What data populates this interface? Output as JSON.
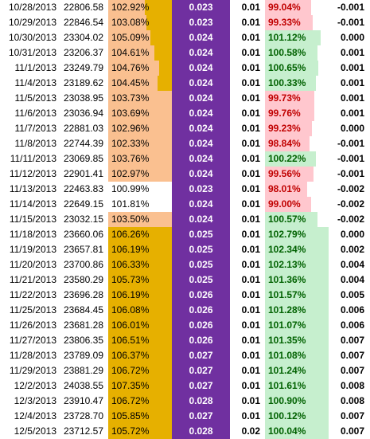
{
  "colors": {
    "orange_light": "#fac090",
    "orange_dark": "#e6b000",
    "purple": "#7030a0",
    "green_fill": "#c6efce",
    "green_text": "#006100",
    "red_fill": "#ffc7ce",
    "red_text": "#c00000"
  },
  "rows": [
    {
      "date": "10/28/2013",
      "value": "22806.58",
      "pct1": "102.92%",
      "pct1_fill": 0.58,
      "pct1_tone": "light",
      "rate": "0.023",
      "small": "0.01",
      "pct2": "99.04%",
      "pct2_tone": "red",
      "pct2_fill": 0.72,
      "last": "-0.001"
    },
    {
      "date": "10/29/2013",
      "value": "22846.54",
      "pct1": "103.08%",
      "pct1_fill": 0.6,
      "pct1_tone": "light",
      "rate": "0.023",
      "small": "0.01",
      "pct2": "99.33%",
      "pct2_tone": "red",
      "pct2_fill": 0.75,
      "last": "-0.001"
    },
    {
      "date": "10/30/2013",
      "value": "23304.02",
      "pct1": "105.09%",
      "pct1_fill": 0.66,
      "pct1_tone": "light",
      "rate": "0.024",
      "small": "0.01",
      "pct2": "101.12%",
      "pct2_tone": "green",
      "pct2_fill": 0.88,
      "last": "0.000"
    },
    {
      "date": "10/31/2013",
      "value": "23206.37",
      "pct1": "104.61%",
      "pct1_fill": 0.72,
      "pct1_tone": "light",
      "rate": "0.024",
      "small": "0.01",
      "pct2": "100.58%",
      "pct2_tone": "green",
      "pct2_fill": 0.82,
      "last": "0.001"
    },
    {
      "date": "11/1/2013",
      "value": "23249.79",
      "pct1": "104.76%",
      "pct1_fill": 0.8,
      "pct1_tone": "light",
      "rate": "0.024",
      "small": "0.01",
      "pct2": "100.65%",
      "pct2_tone": "green",
      "pct2_fill": 0.84,
      "last": "0.001"
    },
    {
      "date": "11/4/2013",
      "value": "23189.62",
      "pct1": "104.45%",
      "pct1_fill": 0.78,
      "pct1_tone": "light",
      "rate": "0.024",
      "small": "0.01",
      "pct2": "100.33%",
      "pct2_tone": "green",
      "pct2_fill": 0.8,
      "last": "0.001"
    },
    {
      "date": "11/5/2013",
      "value": "23038.95",
      "pct1": "103.73%",
      "pct1_fill": 1.0,
      "pct1_tone": "light",
      "rate": "0.024",
      "small": "0.01",
      "pct2": "99.73%",
      "pct2_tone": "red",
      "pct2_fill": 0.78,
      "last": "0.001"
    },
    {
      "date": "11/6/2013",
      "value": "23036.94",
      "pct1": "103.69%",
      "pct1_fill": 1.0,
      "pct1_tone": "light",
      "rate": "0.024",
      "small": "0.01",
      "pct2": "99.76%",
      "pct2_tone": "red",
      "pct2_fill": 0.78,
      "last": "0.001"
    },
    {
      "date": "11/7/2013",
      "value": "22881.03",
      "pct1": "102.96%",
      "pct1_fill": 1.0,
      "pct1_tone": "light",
      "rate": "0.024",
      "small": "0.01",
      "pct2": "99.23%",
      "pct2_tone": "red",
      "pct2_fill": 0.74,
      "last": "0.000"
    },
    {
      "date": "11/8/2013",
      "value": "22744.39",
      "pct1": "102.33%",
      "pct1_fill": 1.0,
      "pct1_tone": "light",
      "rate": "0.024",
      "small": "0.01",
      "pct2": "98.84%",
      "pct2_tone": "red",
      "pct2_fill": 0.7,
      "last": "-0.001"
    },
    {
      "date": "11/11/2013",
      "value": "23069.85",
      "pct1": "103.76%",
      "pct1_fill": 1.0,
      "pct1_tone": "light",
      "rate": "0.024",
      "small": "0.01",
      "pct2": "100.22%",
      "pct2_tone": "green",
      "pct2_fill": 0.8,
      "last": "-0.001"
    },
    {
      "date": "11/12/2013",
      "value": "22901.41",
      "pct1": "102.97%",
      "pct1_fill": 1.0,
      "pct1_tone": "light",
      "rate": "0.024",
      "small": "0.01",
      "pct2": "99.56%",
      "pct2_tone": "red",
      "pct2_fill": 0.76,
      "last": "-0.001"
    },
    {
      "date": "11/13/2013",
      "value": "22463.83",
      "pct1": "100.99%",
      "pct1_fill": 0.0,
      "pct1_tone": "none",
      "rate": "0.023",
      "small": "0.01",
      "pct2": "98.01%",
      "pct2_tone": "red",
      "pct2_fill": 0.66,
      "last": "-0.002"
    },
    {
      "date": "11/14/2013",
      "value": "22649.15",
      "pct1": "101.81%",
      "pct1_fill": 0.0,
      "pct1_tone": "none",
      "rate": "0.024",
      "small": "0.01",
      "pct2": "99.00%",
      "pct2_tone": "red",
      "pct2_fill": 0.72,
      "last": "-0.002"
    },
    {
      "date": "11/15/2013",
      "value": "23032.15",
      "pct1": "103.50%",
      "pct1_fill": 1.0,
      "pct1_tone": "light",
      "rate": "0.024",
      "small": "0.01",
      "pct2": "100.57%",
      "pct2_tone": "green",
      "pct2_fill": 0.82,
      "last": "-0.002"
    },
    {
      "date": "11/18/2013",
      "value": "23660.06",
      "pct1": "106.26%",
      "pct1_fill": 1.0,
      "pct1_tone": "dark",
      "rate": "0.025",
      "small": "0.01",
      "pct2": "102.79%",
      "pct2_tone": "green",
      "pct2_fill": 1.0,
      "last": "0.000"
    },
    {
      "date": "11/19/2013",
      "value": "23657.81",
      "pct1": "106.19%",
      "pct1_fill": 1.0,
      "pct1_tone": "dark",
      "rate": "0.025",
      "small": "0.01",
      "pct2": "102.34%",
      "pct2_tone": "green",
      "pct2_fill": 1.0,
      "last": "0.002"
    },
    {
      "date": "11/20/2013",
      "value": "23700.86",
      "pct1": "106.33%",
      "pct1_fill": 1.0,
      "pct1_tone": "dark",
      "rate": "0.025",
      "small": "0.01",
      "pct2": "102.13%",
      "pct2_tone": "green",
      "pct2_fill": 1.0,
      "last": "0.004"
    },
    {
      "date": "11/21/2013",
      "value": "23580.29",
      "pct1": "105.73%",
      "pct1_fill": 1.0,
      "pct1_tone": "dark",
      "rate": "0.025",
      "small": "0.01",
      "pct2": "101.36%",
      "pct2_tone": "green",
      "pct2_fill": 1.0,
      "last": "0.004"
    },
    {
      "date": "11/22/2013",
      "value": "23696.28",
      "pct1": "106.19%",
      "pct1_fill": 1.0,
      "pct1_tone": "dark",
      "rate": "0.026",
      "small": "0.01",
      "pct2": "101.57%",
      "pct2_tone": "green",
      "pct2_fill": 1.0,
      "last": "0.005"
    },
    {
      "date": "11/25/2013",
      "value": "23684.45",
      "pct1": "106.08%",
      "pct1_fill": 1.0,
      "pct1_tone": "dark",
      "rate": "0.026",
      "small": "0.01",
      "pct2": "101.28%",
      "pct2_tone": "green",
      "pct2_fill": 1.0,
      "last": "0.006"
    },
    {
      "date": "11/26/2013",
      "value": "23681.28",
      "pct1": "106.01%",
      "pct1_fill": 1.0,
      "pct1_tone": "dark",
      "rate": "0.026",
      "small": "0.01",
      "pct2": "101.07%",
      "pct2_tone": "green",
      "pct2_fill": 1.0,
      "last": "0.006"
    },
    {
      "date": "11/27/2013",
      "value": "23806.35",
      "pct1": "106.51%",
      "pct1_fill": 1.0,
      "pct1_tone": "dark",
      "rate": "0.026",
      "small": "0.01",
      "pct2": "101.35%",
      "pct2_tone": "green",
      "pct2_fill": 1.0,
      "last": "0.007"
    },
    {
      "date": "11/28/2013",
      "value": "23789.09",
      "pct1": "106.37%",
      "pct1_fill": 1.0,
      "pct1_tone": "dark",
      "rate": "0.027",
      "small": "0.01",
      "pct2": "101.08%",
      "pct2_tone": "green",
      "pct2_fill": 1.0,
      "last": "0.007"
    },
    {
      "date": "11/29/2013",
      "value": "23881.29",
      "pct1": "106.72%",
      "pct1_fill": 1.0,
      "pct1_tone": "dark",
      "rate": "0.027",
      "small": "0.01",
      "pct2": "101.24%",
      "pct2_tone": "green",
      "pct2_fill": 1.0,
      "last": "0.007"
    },
    {
      "date": "12/2/2013",
      "value": "24038.55",
      "pct1": "107.35%",
      "pct1_fill": 1.0,
      "pct1_tone": "dark",
      "rate": "0.027",
      "small": "0.01",
      "pct2": "101.61%",
      "pct2_tone": "green",
      "pct2_fill": 1.0,
      "last": "0.008"
    },
    {
      "date": "12/3/2013",
      "value": "23910.47",
      "pct1": "106.72%",
      "pct1_fill": 1.0,
      "pct1_tone": "dark",
      "rate": "0.028",
      "small": "0.01",
      "pct2": "100.90%",
      "pct2_tone": "green",
      "pct2_fill": 1.0,
      "last": "0.008"
    },
    {
      "date": "12/4/2013",
      "value": "23728.70",
      "pct1": "105.85%",
      "pct1_fill": 1.0,
      "pct1_tone": "dark",
      "rate": "0.027",
      "small": "0.01",
      "pct2": "100.12%",
      "pct2_tone": "green",
      "pct2_fill": 1.0,
      "last": "0.007"
    },
    {
      "date": "12/5/2013",
      "value": "23712.57",
      "pct1": "105.72%",
      "pct1_fill": 1.0,
      "pct1_tone": "dark",
      "rate": "0.028",
      "small": "0.02",
      "pct2": "100.04%",
      "pct2_tone": "green",
      "pct2_fill": 1.0,
      "last": "0.007"
    }
  ]
}
